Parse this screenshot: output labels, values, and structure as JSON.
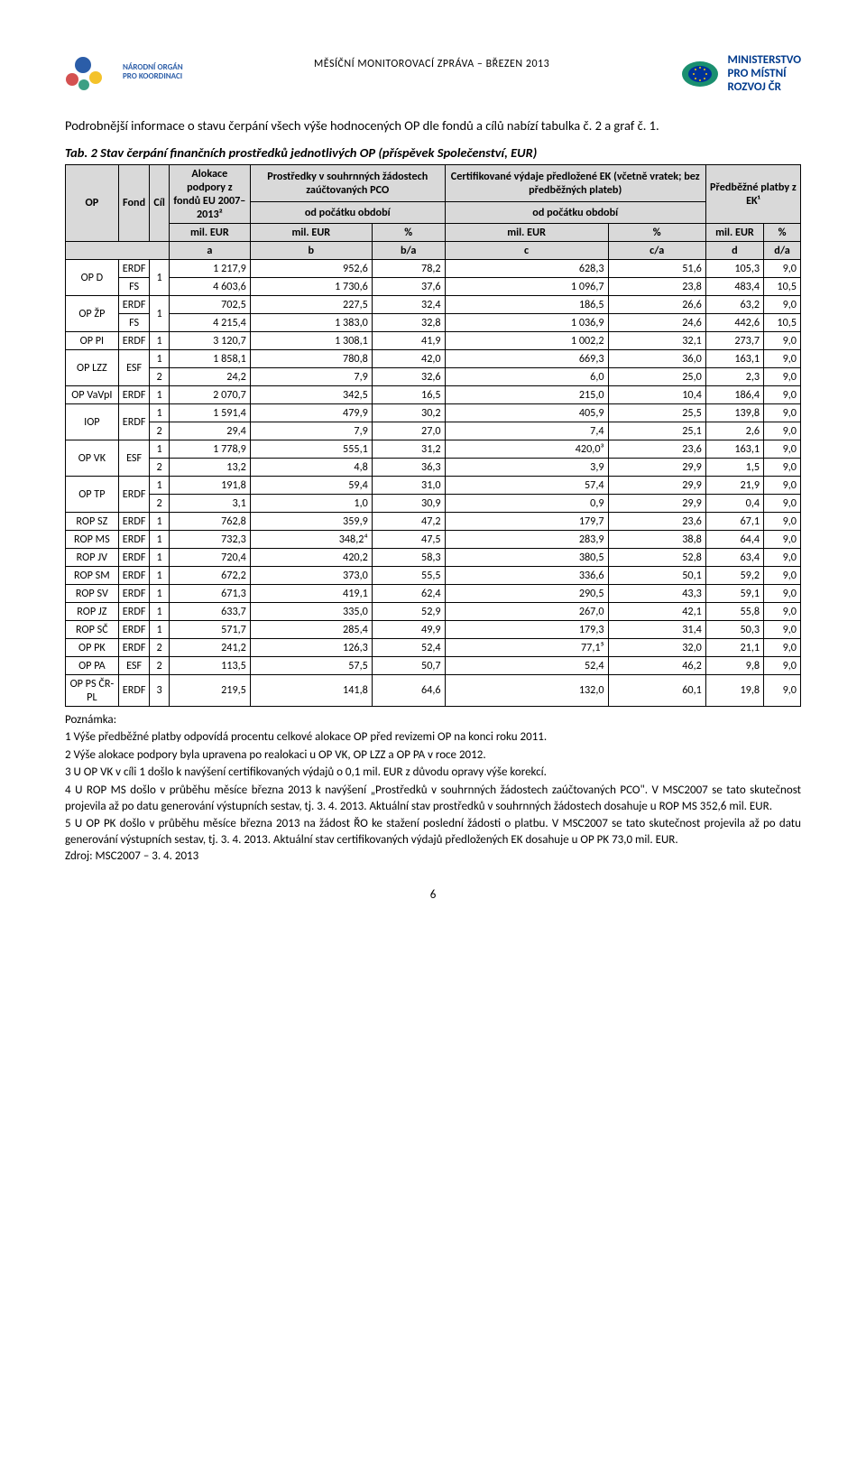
{
  "header": {
    "left_org_top": "NÁRODNÍ ORGÁN",
    "left_org_bot": "PRO KOORDINACI",
    "center": "MĚSÍČNÍ MONITOROVACÍ ZPRÁVA – BŘEZEN 2013",
    "right_top": "MINISTERSTVO",
    "right_mid": "PRO MÍSTNÍ",
    "right_bot": "ROZVOJ ČR"
  },
  "intro": "Podrobnější informace o stavu čerpání všech výše hodnocených OP dle fondů a cílů nabízí tabulka č. 2 a graf č. 1.",
  "caption": "Tab. 2 Stav čerpání finančních prostředků jednotlivých OP (příspěvek Společenství, EUR)",
  "th": {
    "op": "OP",
    "fond": "Fond",
    "cil": "Cíl",
    "alloc": "Alokace podpory z fondů EU 2007–2013²",
    "pros": "Prostředky v souhrnných žádostech zaúčtovaných PCO",
    "cert": "Certifikované výdaje předložené EK (včetně vratek; bez předběžných plateb)",
    "pred": "Předběžné platby z EK¹",
    "od": "od počátku období",
    "milEUR": "mil. EUR",
    "pct": "%",
    "a": "a",
    "b": "b",
    "ba": "b/a",
    "c": "c",
    "ca": "c/a",
    "d": "d",
    "da": "d/a"
  },
  "rows": [
    {
      "op": "OP D",
      "fond": "ERDF",
      "cil": "1",
      "a": "1 217,9",
      "b": "952,6",
      "ba": "78,2",
      "c": "628,3",
      "ca": "51,6",
      "d": "105,3",
      "da": "9,0",
      "opspan": 2,
      "cilspan": 2
    },
    {
      "op": "",
      "fond": "FS",
      "cil": "",
      "a": "4 603,6",
      "b": "1 730,6",
      "ba": "37,6",
      "c": "1 096,7",
      "ca": "23,8",
      "d": "483,4",
      "da": "10,5"
    },
    {
      "op": "OP ŽP",
      "fond": "ERDF",
      "cil": "1",
      "a": "702,5",
      "b": "227,5",
      "ba": "32,4",
      "c": "186,5",
      "ca": "26,6",
      "d": "63,2",
      "da": "9,0",
      "opspan": 2,
      "cilspan": 2
    },
    {
      "op": "",
      "fond": "FS",
      "cil": "",
      "a": "4 215,4",
      "b": "1 383,0",
      "ba": "32,8",
      "c": "1 036,9",
      "ca": "24,6",
      "d": "442,6",
      "da": "10,5"
    },
    {
      "op": "OP PI",
      "fond": "ERDF",
      "cil": "1",
      "a": "3 120,7",
      "b": "1 308,1",
      "ba": "41,9",
      "c": "1 002,2",
      "ca": "32,1",
      "d": "273,7",
      "da": "9,0"
    },
    {
      "op": "OP LZZ",
      "fond": "ESF",
      "cil": "1",
      "a": "1 858,1",
      "b": "780,8",
      "ba": "42,0",
      "c": "669,3",
      "ca": "36,0",
      "d": "163,1",
      "da": "9,0",
      "opspan": 2,
      "fondspan": 2
    },
    {
      "op": "",
      "fond": "",
      "cil": "2",
      "a": "24,2",
      "b": "7,9",
      "ba": "32,6",
      "c": "6,0",
      "ca": "25,0",
      "d": "2,3",
      "da": "9,0"
    },
    {
      "op": "OP VaVpI",
      "fond": "ERDF",
      "cil": "1",
      "a": "2 070,7",
      "b": "342,5",
      "ba": "16,5",
      "c": "215,0",
      "ca": "10,4",
      "d": "186,4",
      "da": "9,0"
    },
    {
      "op": "IOP",
      "fond": "ERDF",
      "cil": "1",
      "a": "1 591,4",
      "b": "479,9",
      "ba": "30,2",
      "c": "405,9",
      "ca": "25,5",
      "d": "139,8",
      "da": "9,0",
      "opspan": 2,
      "fondspan": 2
    },
    {
      "op": "",
      "fond": "",
      "cil": "2",
      "a": "29,4",
      "b": "7,9",
      "ba": "27,0",
      "c": "7,4",
      "ca": "25,1",
      "d": "2,6",
      "da": "9,0"
    },
    {
      "op": "OP VK",
      "fond": "ESF",
      "cil": "1",
      "a": "1 778,9",
      "b": "555,1",
      "ba": "31,2",
      "c": "420,0³",
      "ca": "23,6",
      "d": "163,1",
      "da": "9,0",
      "opspan": 2,
      "fondspan": 2
    },
    {
      "op": "",
      "fond": "",
      "cil": "2",
      "a": "13,2",
      "b": "4,8",
      "ba": "36,3",
      "c": "3,9",
      "ca": "29,9",
      "d": "1,5",
      "da": "9,0"
    },
    {
      "op": "OP TP",
      "fond": "ERDF",
      "cil": "1",
      "a": "191,8",
      "b": "59,4",
      "ba": "31,0",
      "c": "57,4",
      "ca": "29,9",
      "d": "21,9",
      "da": "9,0",
      "opspan": 2,
      "fondspan": 2
    },
    {
      "op": "",
      "fond": "",
      "cil": "2",
      "a": "3,1",
      "b": "1,0",
      "ba": "30,9",
      "c": "0,9",
      "ca": "29,9",
      "d": "0,4",
      "da": "9,0"
    },
    {
      "op": "ROP SZ",
      "fond": "ERDF",
      "cil": "1",
      "a": "762,8",
      "b": "359,9",
      "ba": "47,2",
      "c": "179,7",
      "ca": "23,6",
      "d": "67,1",
      "da": "9,0"
    },
    {
      "op": "ROP MS",
      "fond": "ERDF",
      "cil": "1",
      "a": "732,3",
      "b": "348,2⁴",
      "ba": "47,5",
      "c": "283,9",
      "ca": "38,8",
      "d": "64,4",
      "da": "9,0"
    },
    {
      "op": "ROP JV",
      "fond": "ERDF",
      "cil": "1",
      "a": "720,4",
      "b": "420,2",
      "ba": "58,3",
      "c": "380,5",
      "ca": "52,8",
      "d": "63,4",
      "da": "9,0"
    },
    {
      "op": "ROP SM",
      "fond": "ERDF",
      "cil": "1",
      "a": "672,2",
      "b": "373,0",
      "ba": "55,5",
      "c": "336,6",
      "ca": "50,1",
      "d": "59,2",
      "da": "9,0"
    },
    {
      "op": "ROP SV",
      "fond": "ERDF",
      "cil": "1",
      "a": "671,3",
      "b": "419,1",
      "ba": "62,4",
      "c": "290,5",
      "ca": "43,3",
      "d": "59,1",
      "da": "9,0"
    },
    {
      "op": "ROP JZ",
      "fond": "ERDF",
      "cil": "1",
      "a": "633,7",
      "b": "335,0",
      "ba": "52,9",
      "c": "267,0",
      "ca": "42,1",
      "d": "55,8",
      "da": "9,0"
    },
    {
      "op": "ROP SČ",
      "fond": "ERDF",
      "cil": "1",
      "a": "571,7",
      "b": "285,4",
      "ba": "49,9",
      "c": "179,3",
      "ca": "31,4",
      "d": "50,3",
      "da": "9,0"
    },
    {
      "op": "OP PK",
      "fond": "ERDF",
      "cil": "2",
      "a": "241,2",
      "b": "126,3",
      "ba": "52,4",
      "c": "77,1⁵",
      "ca": "32,0",
      "d": "21,1",
      "da": "9,0"
    },
    {
      "op": "OP PA",
      "fond": "ESF",
      "cil": "2",
      "a": "113,5",
      "b": "57,5",
      "ba": "50,7",
      "c": "52,4",
      "ca": "46,2",
      "d": "9,8",
      "da": "9,0"
    },
    {
      "op": "OP PS ČR-PL",
      "fond": "ERDF",
      "cil": "3",
      "a": "219,5",
      "b": "141,8",
      "ba": "64,6",
      "c": "132,0",
      "ca": "60,1",
      "d": "19,8",
      "da": "9,0"
    }
  ],
  "notes": {
    "h": "Poznámka:",
    "n1": "1 Výše předběžné platby odpovídá procentu celkové alokace OP před revizemi OP na konci roku 2011.",
    "n2": "2 Výše alokace podpory byla upravena po realokaci u OP VK, OP LZZ a OP PA v roce 2012.",
    "n3": "3 U OP VK v cíli 1 došlo k navýšení certifikovaných výdajů o 0,1 mil. EUR z důvodu opravy výše korekcí.",
    "n4": "4 U ROP MS došlo v průběhu měsíce března 2013 k navýšení „Prostředků v souhrnných žádostech zaúčtovaných PCO\". V MSC2007 se tato skutečnost projevila až po datu generování výstupních sestav, tj. 3. 4. 2013. Aktuální stav prostředků v souhrnných žádostech dosahuje u ROP MS 352,6 mil. EUR.",
    "n5": "5 U OP PK došlo v průběhu měsíce března 2013 na žádost ŘO ke stažení poslední žádosti o platbu. V MSC2007 se tato skutečnost projevila až po datu generování výstupních sestav, tj. 3. 4. 2013. Aktuální stav certifikovaných výdajů předložených EK dosahuje u OP PK 73,0 mil. EUR.",
    "src": "Zdroj: MSC2007 – 3. 4. 2013"
  },
  "page_num": "6",
  "colors": {
    "header_bg": "#d9d9d9",
    "border": "#000000",
    "logo_blue": "#2b5da8",
    "logo_red": "#c33",
    "logo_teal": "#1a8f6f",
    "eu_blue": "#003399",
    "eu_gold": "#ffcc00",
    "ministry": "#003a8c"
  }
}
